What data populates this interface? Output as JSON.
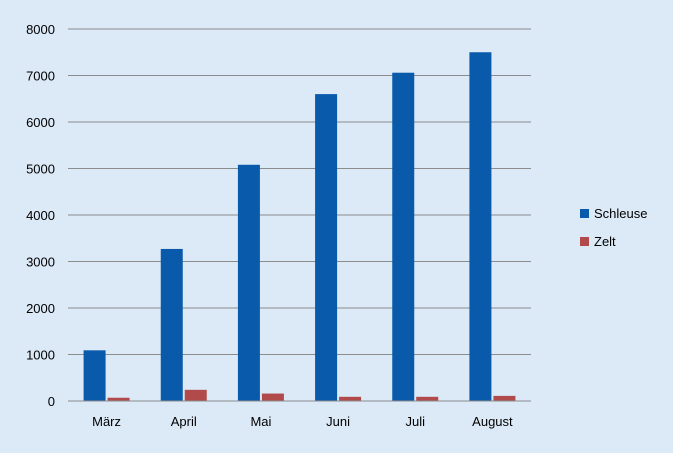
{
  "chart_data": {
    "type": "bar",
    "categories": [
      "März",
      "April",
      "Mai",
      "Juni",
      "Juli",
      "August"
    ],
    "series": [
      {
        "name": "Schleuse",
        "color": "#0a5aab",
        "values": [
          1090,
          3270,
          5080,
          6600,
          7060,
          7500
        ]
      },
      {
        "name": "Zelt",
        "color": "#b14a4a",
        "values": [
          70,
          240,
          160,
          90,
          90,
          110
        ]
      }
    ],
    "ylim": [
      0,
      8000
    ],
    "yticks": [
      0,
      1000,
      2000,
      3000,
      4000,
      5000,
      6000,
      7000,
      8000
    ],
    "grid": true,
    "legend_position": "right",
    "title": "",
    "xlabel": "",
    "ylabel": ""
  }
}
